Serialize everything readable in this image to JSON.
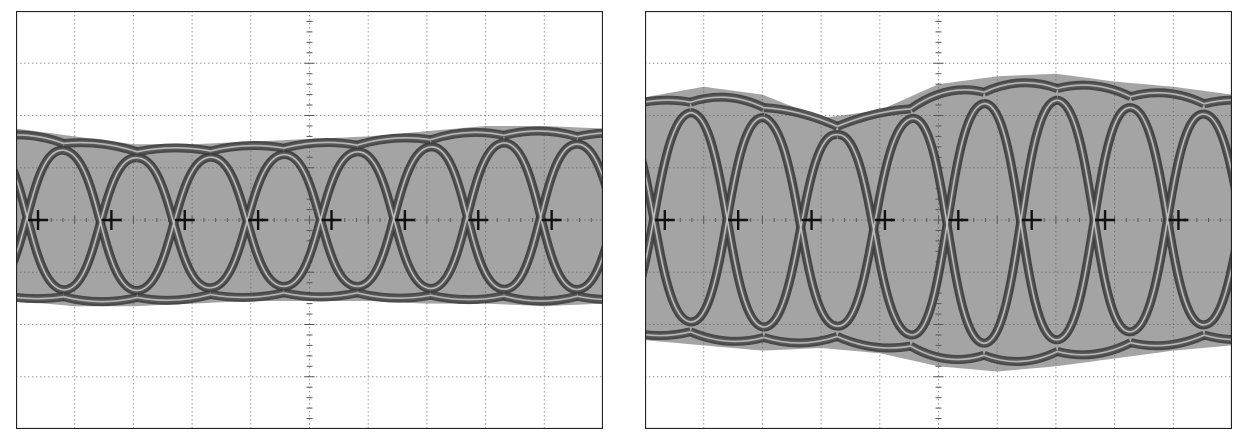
{
  "chart_data": [
    {
      "type": "line",
      "grid": true,
      "grid_divisions": {
        "x": 10,
        "y": 8
      },
      "trace_color": "#5a5a5a",
      "trace_highlight_color": "#c8c8c8",
      "trace_dark_color": "#3a3a3a",
      "grid_color": "#999999",
      "border_color": "#222222",
      "eye_center_markers": 8,
      "eye_phase": 0.15,
      "envelope": {
        "x": [
          0,
          1,
          2,
          3,
          4,
          5,
          6,
          7,
          8,
          9,
          10
        ],
        "upper": [
          1.75,
          1.6,
          1.45,
          1.45,
          1.5,
          1.55,
          1.6,
          1.7,
          1.8,
          1.8,
          1.75
        ],
        "lower": [
          -1.55,
          -1.65,
          -1.65,
          -1.6,
          -1.55,
          -1.55,
          -1.55,
          -1.6,
          -1.6,
          -1.65,
          -1.6
        ]
      }
    },
    {
      "type": "line",
      "grid": true,
      "grid_divisions": {
        "x": 10,
        "y": 8
      },
      "trace_color": "#5a5a5a",
      "trace_highlight_color": "#c8c8c8",
      "trace_dark_color": "#3a3a3a",
      "grid_color": "#999999",
      "border_color": "#222222",
      "eye_center_markers": 8,
      "eye_phase": 0.12,
      "envelope": {
        "x": [
          0,
          1,
          2,
          3,
          4,
          5,
          6,
          7,
          8,
          9,
          10
        ],
        "upper": [
          2.35,
          2.55,
          2.4,
          1.95,
          2.1,
          2.6,
          2.75,
          2.8,
          2.65,
          2.55,
          2.4
        ],
        "lower": [
          -2.3,
          -2.4,
          -2.5,
          -2.45,
          -2.55,
          -2.8,
          -2.9,
          -2.8,
          -2.65,
          -2.5,
          -2.4
        ]
      }
    }
  ]
}
